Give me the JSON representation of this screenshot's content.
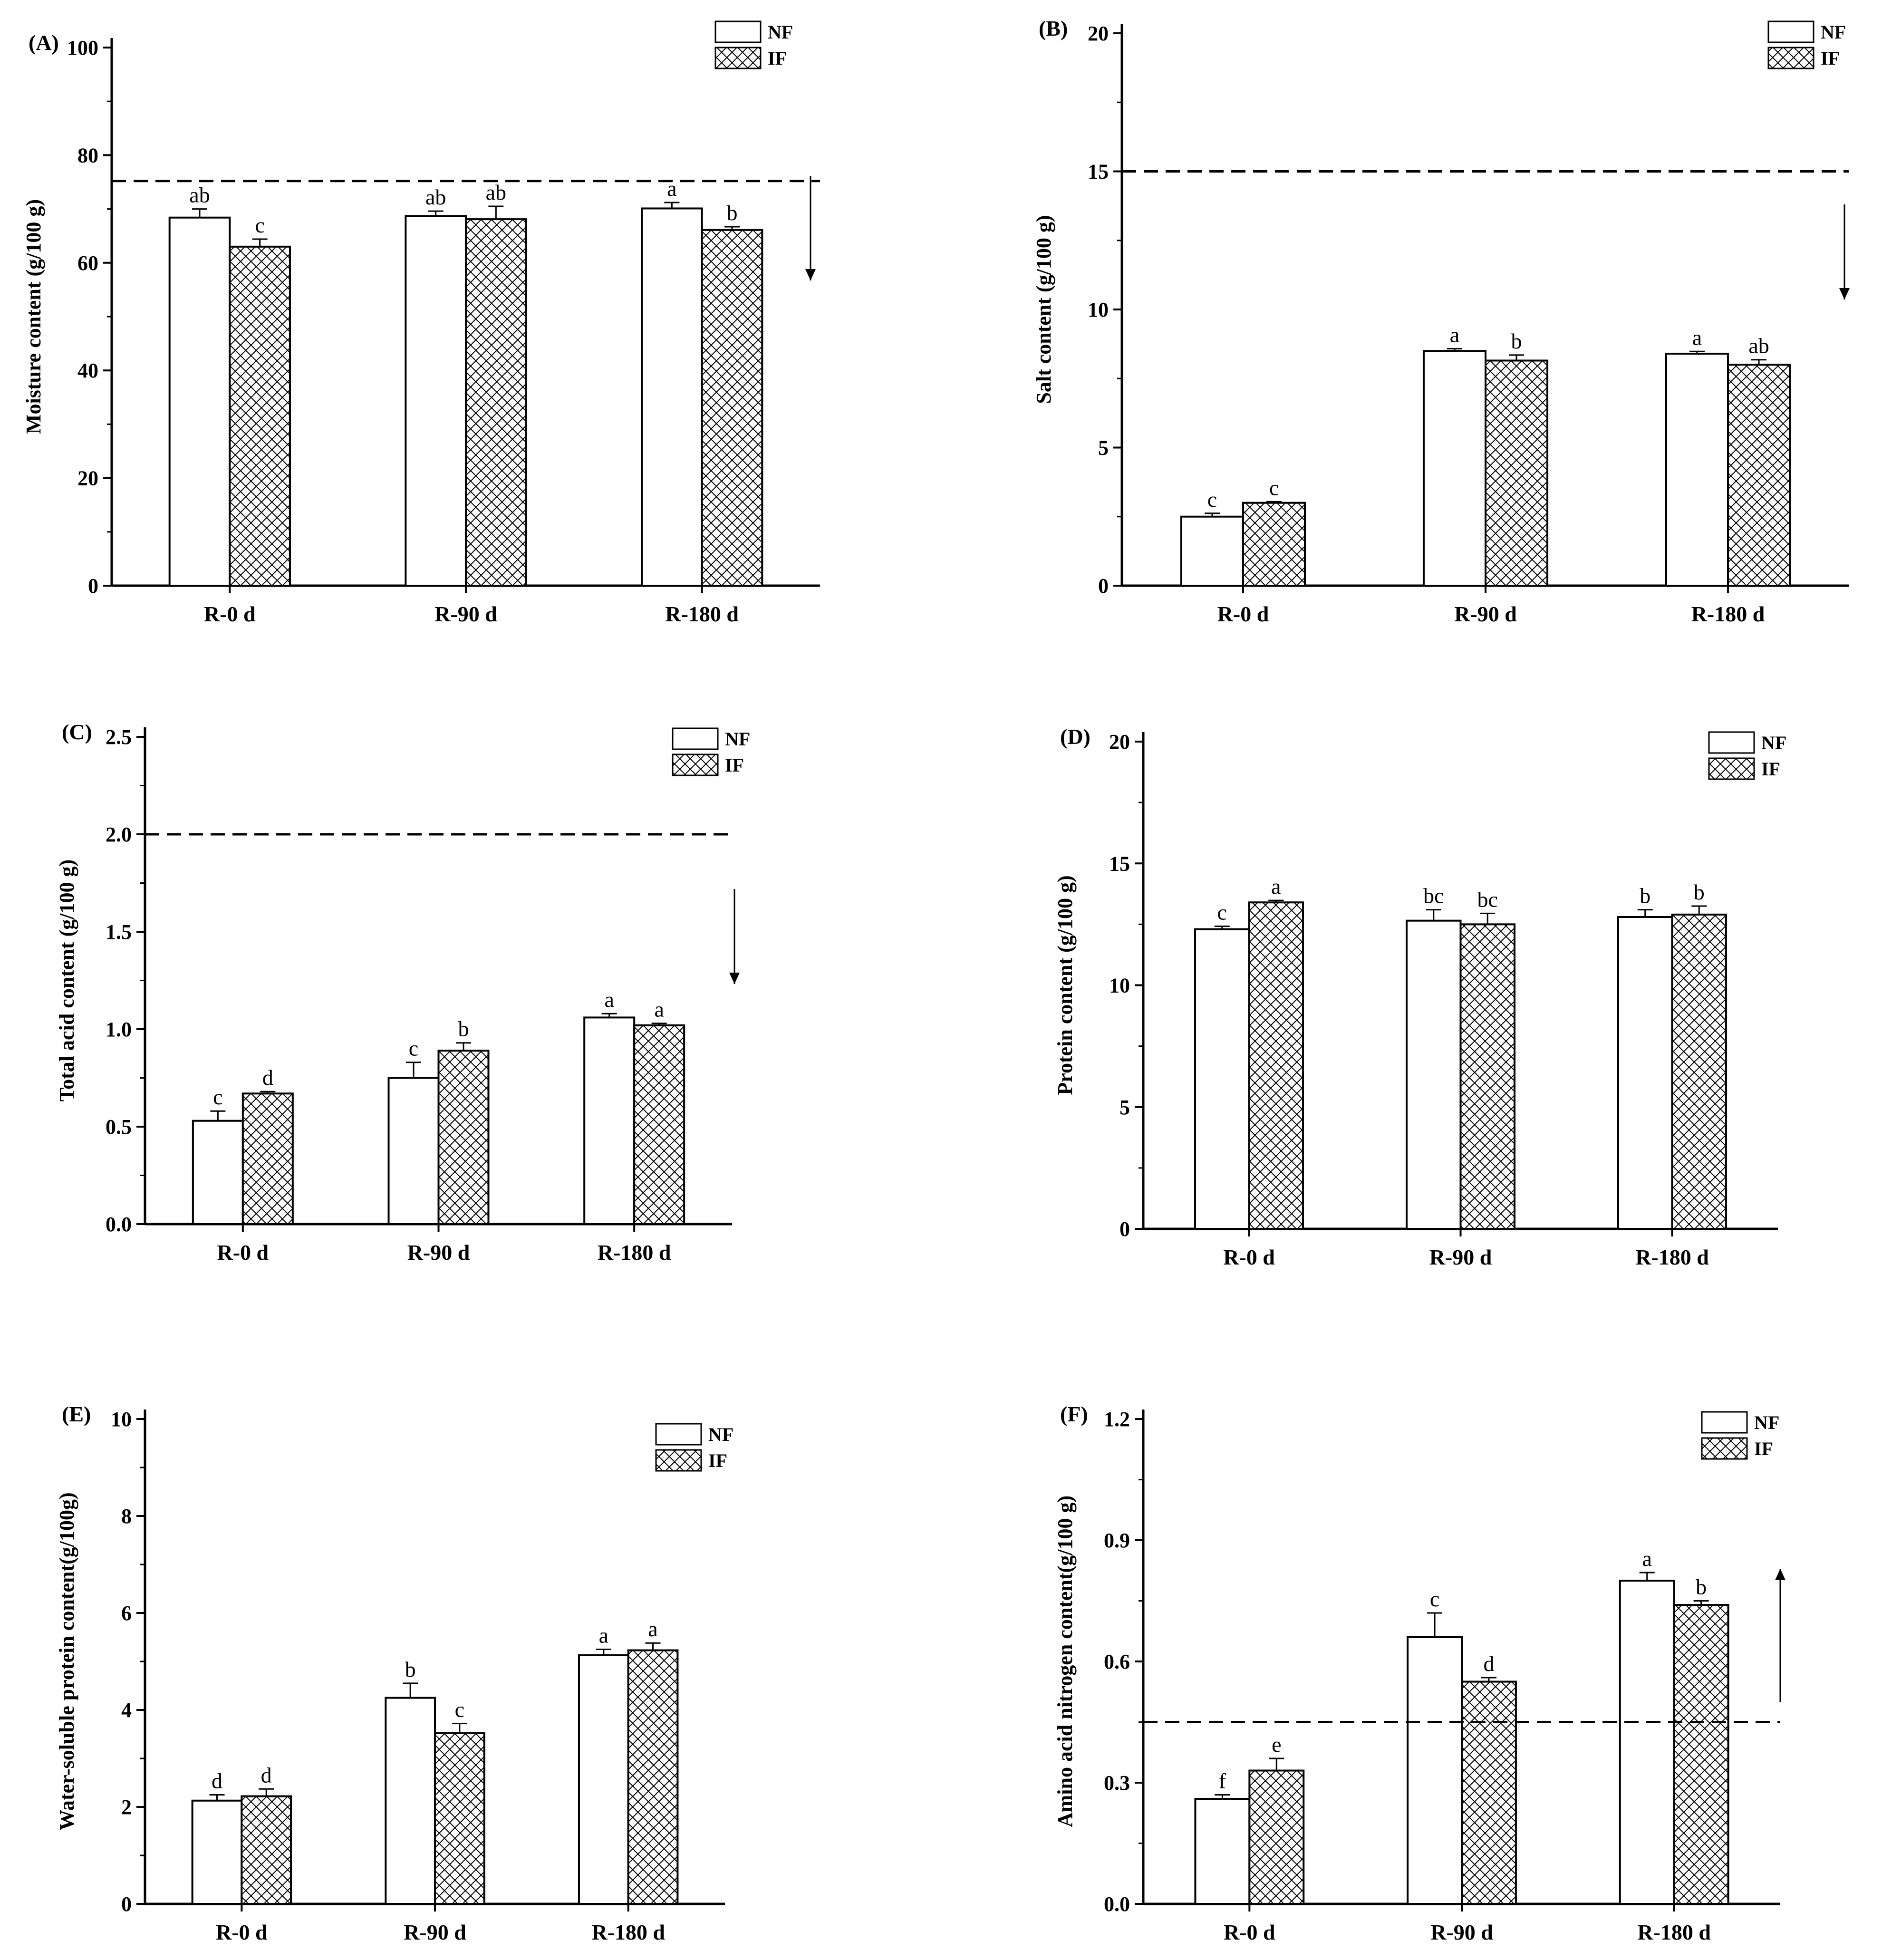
{
  "chart_data": [
    {
      "type": "bar",
      "title": "(A)",
      "ylabel": "Moisture content (g/100 g)",
      "xlabel": "",
      "categories": [
        "R-0 d",
        "R-90 d",
        "R-180 d"
      ],
      "ylim": [
        0,
        100
      ],
      "yticks": [
        "0",
        "20",
        "40",
        "60",
        "80",
        "100"
      ],
      "series": [
        {
          "name": "NF",
          "values": [
            68.4,
            68.7,
            70.1
          ],
          "errors": [
            1.6,
            0.9,
            1.1
          ],
          "letters": [
            "ab",
            "ab",
            "a"
          ]
        },
        {
          "name": "IF",
          "values": [
            63.0,
            68.1,
            66.1
          ],
          "errors": [
            1.4,
            2.4,
            0.6
          ],
          "letters": [
            "c",
            "ab",
            "b"
          ]
        }
      ],
      "reference_line": 75.2,
      "arrow": "down",
      "legend": "top-right"
    },
    {
      "type": "bar",
      "title": "(B)",
      "ylabel": "Salt content (g/100 g)",
      "xlabel": "",
      "categories": [
        "R-0 d",
        "R-90 d",
        "R-180 d"
      ],
      "ylim": [
        0,
        20
      ],
      "yticks": [
        "0",
        "5",
        "10",
        "15",
        "20"
      ],
      "series": [
        {
          "name": "NF",
          "values": [
            2.5,
            8.5,
            8.4
          ],
          "errors": [
            0.12,
            0.08,
            0.08
          ],
          "letters": [
            "c",
            "a",
            "a"
          ]
        },
        {
          "name": "IF",
          "values": [
            3.0,
            8.15,
            8.0
          ],
          "errors": [
            0.04,
            0.2,
            0.18
          ],
          "letters": [
            "c",
            "b",
            "ab"
          ]
        }
      ],
      "reference_line": 15,
      "arrow": "down",
      "legend": "top-right"
    },
    {
      "type": "bar",
      "title": "(C)",
      "ylabel": "Total acid content (g/100 g)",
      "xlabel": "",
      "categories": [
        "R-0 d",
        "R-90 d",
        "R-180 d"
      ],
      "ylim": [
        0,
        2.5
      ],
      "yticks": [
        "0.0",
        "0.5",
        "1.0",
        "1.5",
        "2.0",
        "2.5"
      ],
      "series": [
        {
          "name": "NF",
          "values": [
            0.53,
            0.75,
            1.06
          ],
          "errors": [
            0.05,
            0.08,
            0.02
          ],
          "letters": [
            "c",
            "c",
            "a"
          ]
        },
        {
          "name": "IF",
          "values": [
            0.67,
            0.89,
            1.02
          ],
          "errors": [
            0.01,
            0.04,
            0.01
          ],
          "letters": [
            "d",
            "b",
            "a"
          ]
        }
      ],
      "reference_line": 2.0,
      "arrow": "down",
      "legend": "top-right"
    },
    {
      "type": "bar",
      "title": "(D)",
      "ylabel": "Protein content (g/100 g)",
      "xlabel": "",
      "categories": [
        "R-0 d",
        "R-90 d",
        "R-180 d"
      ],
      "ylim": [
        0,
        20
      ],
      "yticks": [
        "0",
        "5",
        "10",
        "15",
        "20"
      ],
      "series": [
        {
          "name": "NF",
          "values": [
            12.3,
            12.65,
            12.8
          ],
          "errors": [
            0.12,
            0.45,
            0.3
          ],
          "letters": [
            "c",
            "bc",
            "b"
          ]
        },
        {
          "name": "IF",
          "values": [
            13.4,
            12.5,
            12.9
          ],
          "errors": [
            0.08,
            0.45,
            0.35
          ],
          "letters": [
            "a",
            "bc",
            "b"
          ]
        }
      ],
      "reference_line": null,
      "arrow": null,
      "legend": "top-right"
    },
    {
      "type": "bar",
      "title": "(E)",
      "ylabel": "Water-soluble protein content(g/100g)",
      "xlabel": "",
      "categories": [
        "R-0 d",
        "R-90 d",
        "R-180 d"
      ],
      "ylim": [
        0,
        10
      ],
      "yticks": [
        "0",
        "2",
        "4",
        "6",
        "8",
        "10"
      ],
      "series": [
        {
          "name": "NF",
          "values": [
            2.13,
            4.25,
            5.13
          ],
          "errors": [
            0.12,
            0.3,
            0.12
          ],
          "letters": [
            "d",
            "b",
            "a"
          ]
        },
        {
          "name": "IF",
          "values": [
            2.22,
            3.52,
            5.23
          ],
          "errors": [
            0.15,
            0.2,
            0.15
          ],
          "letters": [
            "d",
            "c",
            "a"
          ]
        }
      ],
      "reference_line": null,
      "arrow": null,
      "legend": "top-right"
    },
    {
      "type": "bar",
      "title": "(F)",
      "ylabel": "Amino acid nitrogen content(g/100 g)",
      "xlabel": "",
      "categories": [
        "R-0 d",
        "R-90 d",
        "R-180 d"
      ],
      "ylim": [
        0,
        1.2
      ],
      "yticks": [
        "0.0",
        "0.3",
        "0.6",
        "0.9",
        "1.2"
      ],
      "series": [
        {
          "name": "NF",
          "values": [
            0.26,
            0.66,
            0.8
          ],
          "errors": [
            0.01,
            0.06,
            0.02
          ],
          "letters": [
            "f",
            "c",
            "a"
          ]
        },
        {
          "name": "IF",
          "values": [
            0.33,
            0.55,
            0.74
          ],
          "errors": [
            0.03,
            0.01,
            0.01
          ],
          "letters": [
            "e",
            "d",
            "b"
          ]
        }
      ],
      "reference_line": 0.45,
      "arrow": "up",
      "legend": "top-right"
    }
  ]
}
